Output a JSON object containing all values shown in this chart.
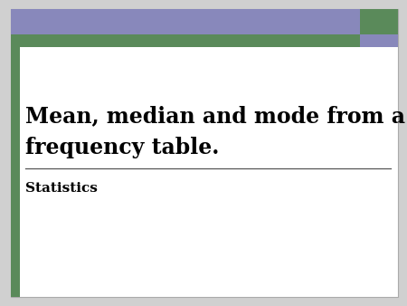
{
  "title_line1": "Mean, median and mode from a",
  "title_line2": "frequency table.",
  "subtitle": "Statistics",
  "bg_color": "#ffffff",
  "border_left_color": "#5a8a5a",
  "header_purple": "#8888bb",
  "header_green": "#5a8a5a",
  "outer_bg": "#d0d0d0",
  "title_color": "#000000",
  "subtitle_color": "#000000",
  "divider_color": "#555555",
  "title_fontsize": 17,
  "subtitle_fontsize": 11
}
